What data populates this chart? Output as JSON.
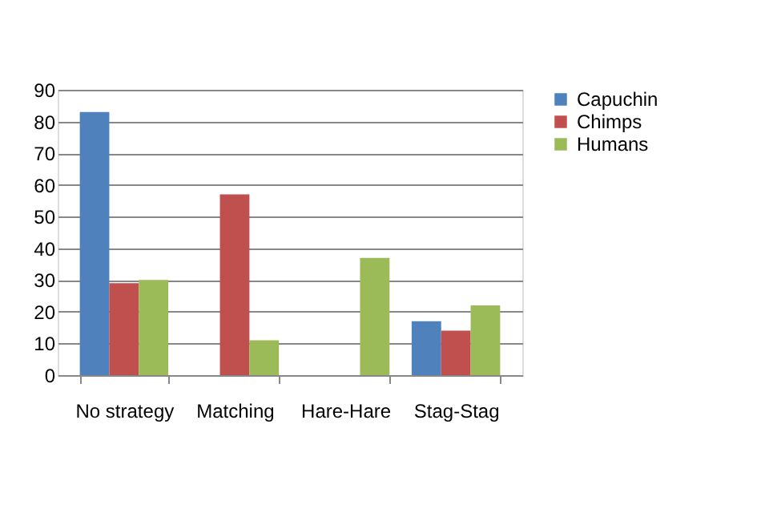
{
  "chart_data": {
    "type": "bar",
    "categories": [
      "No strategy",
      "Matching",
      "Hare-Hare",
      "Stag-Stag"
    ],
    "series": [
      {
        "name": "Capuchin",
        "color": "#4f81bd",
        "values": [
          83,
          0,
          0,
          17
        ]
      },
      {
        "name": "Chimps",
        "color": "#c0504d",
        "values": [
          29,
          57,
          0,
          14
        ]
      },
      {
        "name": "Humans",
        "color": "#9bbb59",
        "values": [
          30,
          11,
          37,
          22
        ]
      }
    ],
    "ylim": [
      0,
      90
    ],
    "yticks": [
      0,
      10,
      20,
      30,
      40,
      50,
      60,
      70,
      80,
      90
    ],
    "grid": "y",
    "legend": "right"
  }
}
